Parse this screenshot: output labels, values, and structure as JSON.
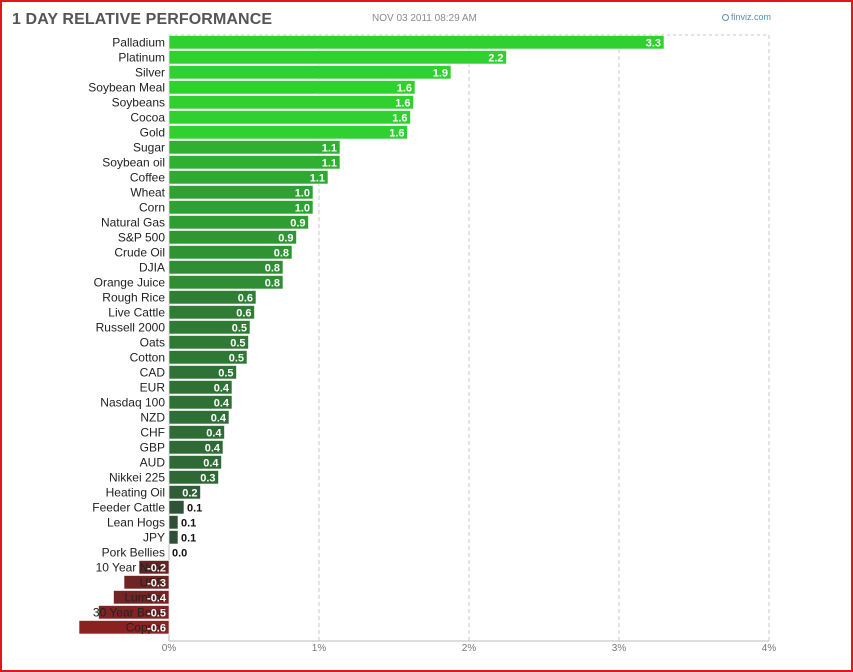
{
  "header": {
    "title": "1 DAY RELATIVE PERFORMANCE",
    "timestamp": "NOV 03 2011 08:29 AM",
    "source": "finviz.com"
  },
  "chart_data": {
    "type": "bar",
    "orientation": "horizontal",
    "title": "1 DAY RELATIVE PERFORMANCE",
    "xlabel": "",
    "ylabel": "",
    "xlim": [
      0,
      4
    ],
    "xticks": [
      0,
      1,
      2,
      3,
      4
    ],
    "xtick_labels": [
      "0%",
      "1%",
      "2%",
      "3%",
      "4%"
    ],
    "grid": "vertical dashed",
    "categories": [
      "Palladium",
      "Platinum",
      "Silver",
      "Soybean Meal",
      "Soybeans",
      "Cocoa",
      "Gold",
      "Sugar",
      "Soybean oil",
      "Coffee",
      "Wheat",
      "Corn",
      "Natural Gas",
      "S&P 500",
      "Crude Oil",
      "DJIA",
      "Orange Juice",
      "Rough Rice",
      "Live Cattle",
      "Russell 2000",
      "Oats",
      "Cotton",
      "CAD",
      "EUR",
      "Nasdaq 100",
      "NZD",
      "CHF",
      "GBP",
      "AUD",
      "Nikkei 225",
      "Heating Oil",
      "Feeder Cattle",
      "Lean Hogs",
      "JPY",
      "Pork Bellies",
      "10 Year Note",
      "USD",
      "Lumber",
      "30 Year Bond",
      "Copper"
    ],
    "values": [
      3.3,
      2.25,
      1.88,
      1.64,
      1.63,
      1.61,
      1.59,
      1.14,
      1.14,
      1.06,
      0.96,
      0.96,
      0.93,
      0.85,
      0.82,
      0.76,
      0.76,
      0.58,
      0.57,
      0.54,
      0.53,
      0.52,
      0.45,
      0.42,
      0.42,
      0.4,
      0.37,
      0.36,
      0.35,
      0.33,
      0.21,
      0.1,
      0.06,
      0.06,
      0.0,
      -0.2,
      -0.3,
      -0.37,
      -0.47,
      -0.6
    ],
    "value_labels": [
      "3.3",
      "2.2",
      "1.9",
      "1.6",
      "1.6",
      "1.6",
      "1.6",
      "1.1",
      "1.1",
      "1.1",
      "1.0",
      "1.0",
      "0.9",
      "0.9",
      "0.8",
      "0.8",
      "0.8",
      "0.6",
      "0.6",
      "0.5",
      "0.5",
      "0.5",
      "0.5",
      "0.4",
      "0.4",
      "0.4",
      "0.4",
      "0.4",
      "0.4",
      "0.3",
      "0.2",
      "0.1",
      "0.1",
      "0.1",
      "0.0",
      "-0.2",
      "-0.3",
      "-0.4",
      "-0.5",
      "-0.6"
    ],
    "colors": {
      "positive_strong": "#2fd02f",
      "positive_weak": "#2f4a37",
      "negative": "#8b2222",
      "grid": "#c8c8c8"
    }
  }
}
